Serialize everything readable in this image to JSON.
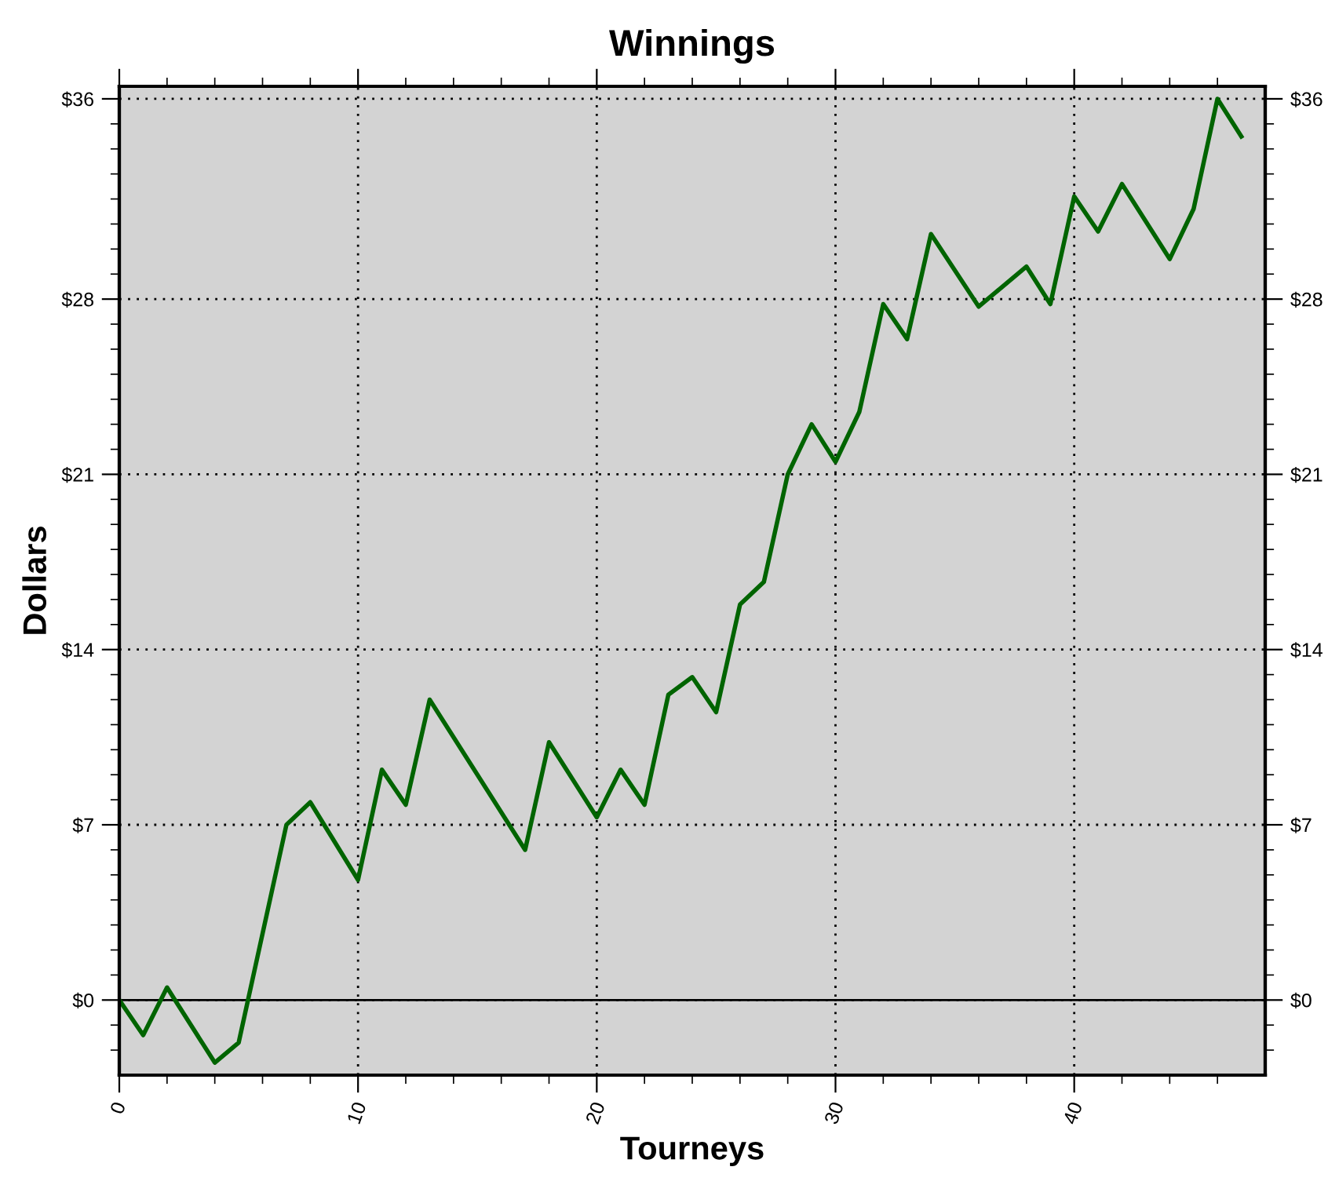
{
  "chart_data": {
    "type": "line",
    "title": "Winnings",
    "xlabel": "Tourneys",
    "ylabel": "Dollars",
    "x": [
      0,
      1,
      2,
      4,
      5,
      7,
      8,
      10,
      11,
      12,
      13,
      17,
      18,
      20,
      21,
      22,
      23,
      24,
      25,
      26,
      27,
      28,
      29,
      30,
      31,
      32,
      33,
      34,
      36,
      38,
      39,
      40,
      41,
      42,
      44,
      45,
      46,
      47
    ],
    "series": [
      {
        "color": "#006400",
        "values": [
          0,
          -1.4,
          0.5,
          -2.5,
          -1.7,
          7.0,
          7.9,
          4.8,
          9.2,
          7.8,
          12.0,
          6.0,
          10.3,
          7.3,
          9.2,
          7.8,
          12.2,
          12.9,
          11.5,
          15.8,
          16.7,
          21.0,
          23.0,
          21.5,
          23.5,
          27.8,
          26.4,
          30.6,
          27.7,
          29.3,
          27.8,
          32.1,
          30.7,
          32.6,
          29.6,
          31.6,
          36.0,
          34.5
        ]
      }
    ],
    "xlim": [
      0,
      48
    ],
    "ylim": [
      -3,
      36.5
    ],
    "y2lim": [
      -3,
      36.5
    ],
    "xticks": [
      0,
      {
        "value": 2,
        "label": null
      },
      {
        "value": 4,
        "label": null
      },
      {
        "value": 6,
        "label": null
      },
      {
        "value": 8,
        "label": null
      },
      10,
      {
        "value": 12,
        "label": null
      },
      {
        "value": 14,
        "label": null
      },
      {
        "value": 16,
        "label": null
      },
      {
        "value": 18,
        "label": null
      },
      20,
      {
        "value": 22,
        "label": null
      },
      {
        "value": 24,
        "label": null
      },
      {
        "value": 26,
        "label": null
      },
      {
        "value": 28,
        "label": null
      },
      30,
      {
        "value": 32,
        "label": null
      },
      {
        "value": 34,
        "label": null
      },
      {
        "value": 36,
        "label": null
      },
      {
        "value": 38,
        "label": null
      },
      40,
      {
        "value": 42,
        "label": null
      },
      {
        "value": 44,
        "label": null
      },
      {
        "value": 46,
        "label": null
      }
    ],
    "yticks": [
      {
        "value": 0,
        "label": "$0"
      },
      {
        "value": 7,
        "label": "$7"
      },
      {
        "value": 14,
        "label": "$14"
      },
      {
        "value": 21,
        "label": "$21"
      },
      {
        "value": 28,
        "label": "$28"
      },
      {
        "value": 36,
        "label": "$36"
      },
      {
        "value": -2,
        "label": null
      },
      {
        "value": -1,
        "label": null
      },
      {
        "value": 1,
        "label": null
      },
      {
        "value": 2,
        "label": null
      },
      {
        "value": 3,
        "label": null
      },
      {
        "value": 4,
        "label": null
      },
      {
        "value": 5,
        "label": null
      },
      {
        "value": 6,
        "label": null
      },
      {
        "value": 7,
        "label": null
      },
      {
        "value": 8,
        "label": null
      },
      {
        "value": 9,
        "label": null
      },
      {
        "value": 10,
        "label": null
      },
      {
        "value": 11,
        "label": null
      },
      {
        "value": 12,
        "label": null
      },
      {
        "value": 13,
        "label": null
      },
      {
        "value": 14,
        "label": null
      },
      {
        "value": 15,
        "label": null
      },
      {
        "value": 16,
        "label": null
      },
      {
        "value": 17,
        "label": null
      },
      {
        "value": 18,
        "label": null
      },
      {
        "value": 19,
        "label": null
      },
      {
        "value": 20,
        "label": null
      },
      {
        "value": 21,
        "label": null
      },
      {
        "value": 22,
        "label": null
      },
      {
        "value": 23,
        "label": null
      },
      {
        "value": 24,
        "label": null
      },
      {
        "value": 25,
        "label": null
      },
      {
        "value": 26,
        "label": null
      },
      {
        "value": 27,
        "label": null
      },
      {
        "value": 28,
        "label": null
      },
      {
        "value": 29,
        "label": null
      },
      {
        "value": 30,
        "label": null
      },
      {
        "value": 31,
        "label": null
      },
      {
        "value": 32,
        "label": null
      },
      {
        "value": 33,
        "label": null
      },
      {
        "value": 34,
        "label": null
      },
      {
        "value": 35,
        "label": null
      }
    ],
    "y2ticks": [
      {
        "value": 0,
        "label": "$0"
      },
      {
        "value": 7,
        "label": "$7"
      },
      {
        "value": 14,
        "label": "$14"
      },
      {
        "value": 21,
        "label": "$21"
      },
      {
        "value": 28,
        "label": "$28"
      },
      {
        "value": 36,
        "label": "$36"
      },
      {
        "value": -2,
        "label": null
      },
      {
        "value": -1,
        "label": null
      },
      {
        "value": 1,
        "label": null
      },
      {
        "value": 2,
        "label": null
      },
      {
        "value": 3,
        "label": null
      },
      {
        "value": 4,
        "label": null
      },
      {
        "value": 5,
        "label": null
      },
      {
        "value": 6,
        "label": null
      },
      {
        "value": 7,
        "label": null
      },
      {
        "value": 8,
        "label": null
      },
      {
        "value": 9,
        "label": null
      },
      {
        "value": 10,
        "label": null
      },
      {
        "value": 11,
        "label": null
      },
      {
        "value": 12,
        "label": null
      },
      {
        "value": 13,
        "label": null
      },
      {
        "value": 14,
        "label": null
      },
      {
        "value": 15,
        "label": null
      },
      {
        "value": 16,
        "label": null
      },
      {
        "value": 17,
        "label": null
      },
      {
        "value": 18,
        "label": null
      },
      {
        "value": 19,
        "label": null
      },
      {
        "value": 20,
        "label": null
      },
      {
        "value": 21,
        "label": null
      },
      {
        "value": 22,
        "label": null
      },
      {
        "value": 23,
        "label": null
      },
      {
        "value": 24,
        "label": null
      },
      {
        "value": 25,
        "label": null
      },
      {
        "value": 26,
        "label": null
      },
      {
        "value": 27,
        "label": null
      },
      {
        "value": 28,
        "label": null
      },
      {
        "value": 29,
        "label": null
      },
      {
        "value": 30,
        "label": null
      },
      {
        "value": 31,
        "label": null
      },
      {
        "value": 32,
        "label": null
      },
      {
        "value": 33,
        "label": null
      },
      {
        "value": 34,
        "label": null
      },
      {
        "value": 35,
        "label": null
      }
    ],
    "grid": true,
    "line_style": "solid",
    "marker": "none",
    "ref_lines": [
      {
        "axis": "y",
        "value": 0,
        "label": null,
        "color": "#000000",
        "line_style": "solid"
      }
    ]
  }
}
